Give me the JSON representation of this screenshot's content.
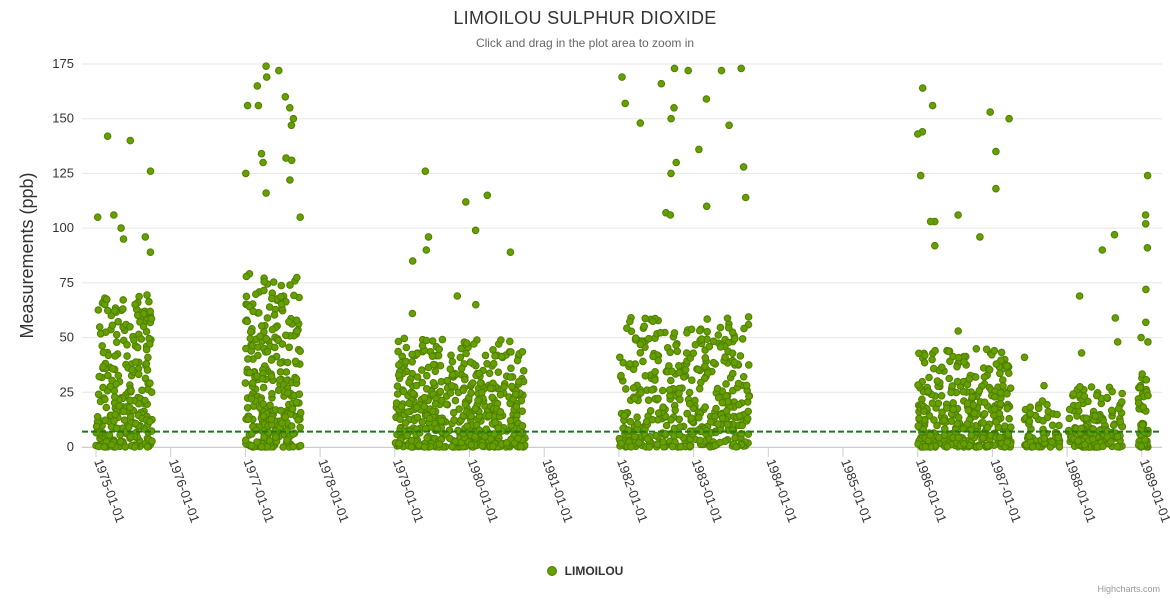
{
  "chart_data": {
    "type": "scatter",
    "title": "LIMOILOU SULPHUR DIOXIDE",
    "subtitle": "Click and drag in the plot area to zoom in",
    "xlabel": "",
    "ylabel": "Measurements (ppb)",
    "ylim": [
      0,
      175
    ],
    "yticks": [
      0,
      25,
      50,
      75,
      100,
      125,
      150,
      175
    ],
    "xlim": [
      "1974-10-01",
      "1989-02-01"
    ],
    "xtick_labels": [
      "1975-01-01",
      "1976-01-01",
      "1977-01-01",
      "1978-01-01",
      "1979-01-01",
      "1980-01-01",
      "1981-01-01",
      "1982-01-01",
      "1983-01-01",
      "1984-01-01",
      "1985-01-01",
      "1986-01-01",
      "1987-01-01",
      "1988-01-01",
      "1989-01-01"
    ],
    "grid": true,
    "legend": "bottom-center",
    "threshold_line": {
      "value": 7,
      "style": "dashed",
      "color": "#1a7a1a"
    },
    "series": [
      {
        "name": "LIMOILOU",
        "color": "#66a000",
        "border_color": "#4f7f00",
        "clusters": [
          {
            "start": "1975-01-01",
            "end": "1975-10-01",
            "count": 260,
            "typical_max": 70,
            "peaks": [
              96,
              95,
              140,
              142,
              126,
              106,
              105,
              100,
              89
            ]
          },
          {
            "start": "1977-01-01",
            "end": "1977-10-01",
            "count": 300,
            "typical_max": 80,
            "peaks": [
              169,
              165,
              160,
              156,
              155,
              150,
              147,
              134,
              132,
              131,
              130,
              172,
              174,
              156,
              125,
              122,
              116,
              105
            ]
          },
          {
            "start": "1979-01-01",
            "end": "1980-10-01",
            "count": 520,
            "typical_max": 50,
            "peaks": [
              126,
              115,
              112,
              99,
              96,
              90,
              85,
              89,
              69,
              65,
              61
            ]
          },
          {
            "start": "1982-01-01",
            "end": "1983-10-01",
            "count": 420,
            "typical_max": 60,
            "peaks": [
              173,
              172,
              172,
              173,
              169,
              166,
              159,
              157,
              155,
              150,
              148,
              147,
              136,
              130,
              128,
              125,
              114,
              110,
              107,
              106
            ]
          },
          {
            "start": "1986-01-01",
            "end": "1987-04-01",
            "count": 360,
            "typical_max": 45,
            "peaks": [
              164,
              156,
              153,
              150,
              144,
              143,
              135,
              124,
              118,
              106,
              103,
              103,
              96,
              92,
              53
            ]
          },
          {
            "start": "1987-06-01",
            "end": "1987-12-01",
            "count": 70,
            "typical_max": 20,
            "peaks": [
              41,
              28,
              21
            ]
          },
          {
            "start": "1988-01-01",
            "end": "1988-10-01",
            "count": 170,
            "typical_max": 28,
            "peaks": [
              97,
              90,
              69,
              59,
              48,
              43
            ]
          },
          {
            "start": "1988-12-15",
            "end": "1989-02-01",
            "count": 60,
            "typical_max": 35,
            "peaks": [
              124,
              106,
              102,
              91,
              72,
              57,
              50,
              48
            ]
          }
        ]
      }
    ]
  },
  "credits": "Highcharts.com"
}
